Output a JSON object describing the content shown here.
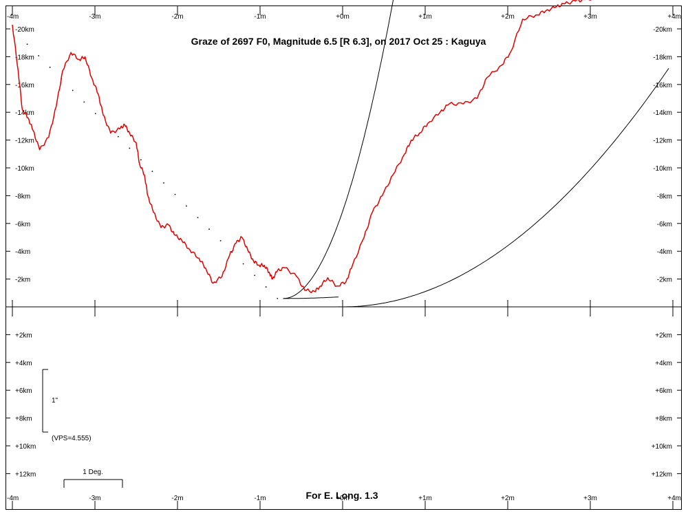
{
  "chart_data": {
    "type": "line",
    "title": "Graze of  2697 F0,  Magnitude 6.5 [R 6.3],  on 2017  Oct 25  :  Kaguya",
    "footer": "For E. Long. 1.3",
    "x_unit": "minutes of time",
    "y_unit": "km",
    "xlim": [
      -4,
      4
    ],
    "ylim": [
      -22,
      13.5
    ],
    "x_tick_labels": [
      "-4m",
      "-3m",
      "-2m",
      "-1m",
      "+0m",
      "+1m",
      "+2m",
      "+3m",
      "+4m"
    ],
    "x_tick_values": [
      -4,
      -3,
      -2,
      -1,
      0,
      1,
      2,
      3,
      4
    ],
    "y_tick_labels": [
      "-20km",
      "-18km",
      "-16km",
      "-14km",
      "-12km",
      "-10km",
      "-8km",
      "-6km",
      "-4km",
      "-2km",
      "+2km",
      "+4km",
      "+6km",
      "+8km",
      "+10km",
      "+12km"
    ],
    "y_tick_values": [
      -20,
      -18,
      -16,
      -14,
      -12,
      -10,
      -8,
      -6,
      -4,
      -2,
      2,
      4,
      6,
      8,
      10,
      12
    ],
    "series": [
      {
        "color": "#e00000",
        "x": [
          -4.0,
          -3.93,
          -3.88,
          -3.81,
          -3.75,
          -3.67,
          -3.56,
          -3.47,
          -3.39,
          -3.29,
          -3.19,
          -3.12,
          -3.04,
          -2.96,
          -2.9,
          -2.81,
          -2.7,
          -2.64,
          -2.58,
          -2.5,
          -2.46,
          -2.4,
          -2.36,
          -2.29,
          -2.2,
          -2.11,
          -2.04,
          -1.95,
          -1.85,
          -1.74,
          -1.66,
          -1.57,
          -1.46,
          -1.37,
          -1.29,
          -1.22,
          -1.15,
          -1.08,
          -1.01,
          -0.95,
          -0.89,
          -0.85,
          -0.79,
          -0.7,
          -0.56,
          -0.46,
          -0.34,
          -0.27,
          -0.18,
          -0.07,
          0.04,
          0.12,
          0.26,
          0.36,
          0.48,
          0.61,
          0.75,
          0.83,
          0.93,
          1.03,
          1.18,
          1.29,
          1.46,
          1.63,
          1.75,
          1.93,
          2.04,
          2.18,
          2.34,
          2.46,
          2.59,
          2.69,
          2.82,
          2.93,
          3.04,
          3.18,
          3.25,
          3.36,
          3.45
        ],
        "y": [
          -20.3,
          -17.0,
          -14.2,
          -13.6,
          -12.7,
          -11.3,
          -12.2,
          -14.4,
          -17.0,
          -18.3,
          -17.8,
          -18.0,
          -16.5,
          -15.3,
          -13.8,
          -12.5,
          -12.8,
          -13.1,
          -12.5,
          -11.8,
          -10.3,
          -9.5,
          -8.0,
          -6.8,
          -5.7,
          -5.9,
          -5.2,
          -4.8,
          -4.1,
          -3.5,
          -2.8,
          -1.7,
          -2.2,
          -3.7,
          -4.6,
          -5.0,
          -4.1,
          -3.3,
          -3.0,
          -3.0,
          -2.5,
          -2.0,
          -2.6,
          -2.8,
          -2.2,
          -1.2,
          -1.1,
          -1.5,
          -2.1,
          -1.5,
          -1.8,
          -3.0,
          -5.0,
          -6.8,
          -8.0,
          -9.5,
          -11.0,
          -12.0,
          -12.5,
          -13.2,
          -14.0,
          -14.6,
          -14.6,
          -15.0,
          -16.5,
          -17.4,
          -18.4,
          -20.7,
          -21.0,
          -21.3,
          -21.6,
          -21.8,
          -22.0,
          -22.1,
          -22.2,
          -22.3,
          -22.3,
          -22.4,
          -22.5
        ]
      }
    ]
  },
  "scale_bars": {
    "arcsec_label": "1\"",
    "vps_label": "(VPS=4.555)",
    "degree_label": "1 Deg."
  }
}
